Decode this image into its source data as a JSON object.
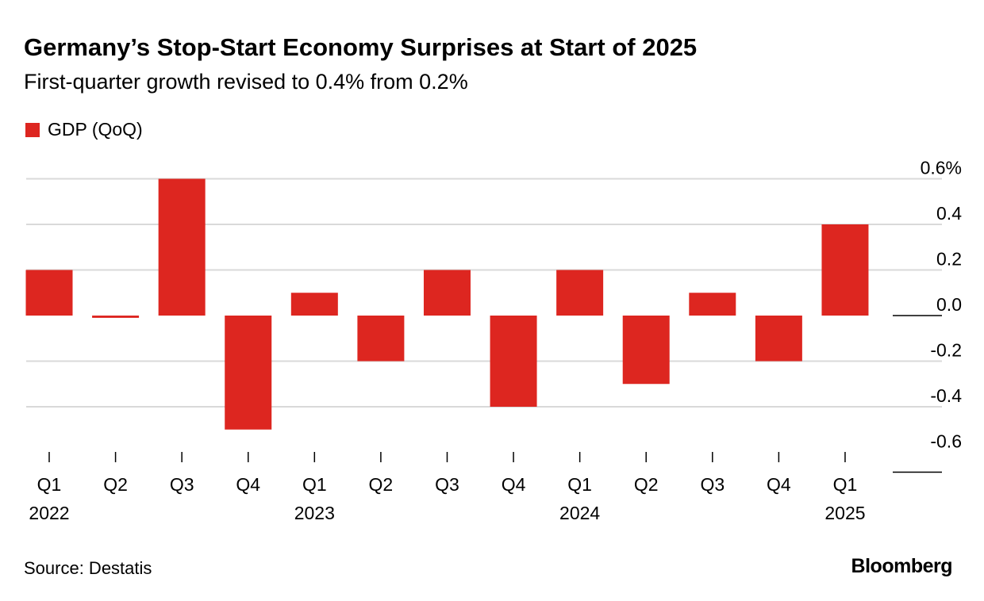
{
  "chart_data": {
    "type": "bar",
    "title": "Germany’s Stop-Start Economy Surprises at Start of 2025",
    "subtitle": "First-quarter growth revised to 0.4% from 0.2%",
    "legend": [
      {
        "name": "GDP (QoQ)",
        "color": "#dd2620"
      }
    ],
    "legend_placement": "top-left",
    "categories": [
      "Q1",
      "Q2",
      "Q3",
      "Q4",
      "Q1",
      "Q2",
      "Q3",
      "Q4",
      "Q1",
      "Q2",
      "Q3",
      "Q4",
      "Q1"
    ],
    "year_labels": {
      "0": "2022",
      "4": "2023",
      "8": "2024",
      "12": "2025"
    },
    "series": [
      {
        "name": "GDP (QoQ)",
        "values": [
          0.2,
          -0.01,
          0.6,
          -0.5,
          0.1,
          -0.2,
          0.2,
          -0.4,
          0.2,
          -0.3,
          0.1,
          -0.2,
          0.4
        ]
      }
    ],
    "ylim": [
      -0.6,
      0.6
    ],
    "yticks": [
      0.6,
      0.4,
      0.2,
      0.0,
      -0.2,
      -0.4,
      -0.6
    ],
    "ytick_labels": [
      "0.6%",
      "0.4",
      "0.2",
      "0.0",
      "-0.2",
      "-0.4",
      "-0.6"
    ],
    "axis_position": "right",
    "grid": true
  },
  "footer": {
    "source": "Source: Destatis",
    "logo": "Bloomberg"
  }
}
